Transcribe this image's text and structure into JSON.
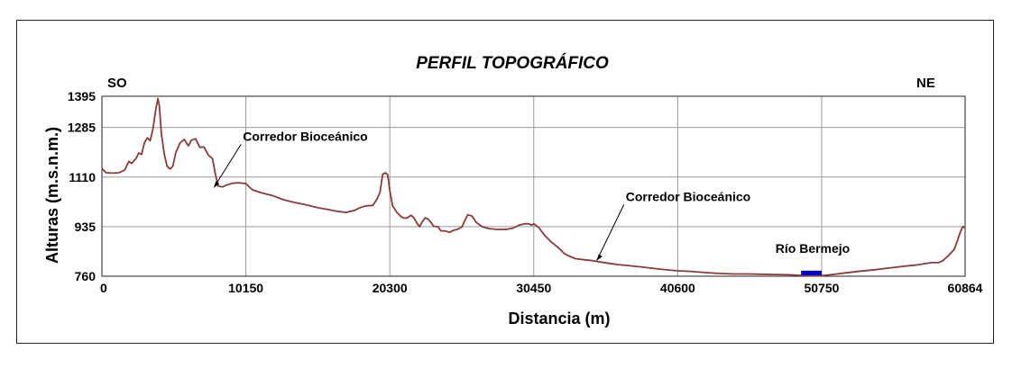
{
  "chart_data": {
    "type": "line",
    "title": "PERFIL TOPOGRÁFICO",
    "xlabel": "Distancia (m)",
    "ylabel": "Alturas (m.s.n.m.)",
    "left_label": "SO",
    "right_label": "NE",
    "xlim": [
      0,
      60864
    ],
    "ylim": [
      760,
      1395
    ],
    "x_ticks": [
      "0",
      "10150",
      "20300",
      "30450",
      "40600",
      "50750",
      "60864"
    ],
    "x_tick_values": [
      0,
      10150,
      20300,
      30450,
      40600,
      50750,
      60864
    ],
    "y_ticks": [
      "760",
      "935",
      "1110",
      "1285",
      "1395"
    ],
    "y_tick_values": [
      760,
      935,
      1110,
      1285,
      1395
    ],
    "grid": true,
    "colors": {
      "profile": "#8b3a3a",
      "river": "#0000cc"
    },
    "series": [
      {
        "points": [
          [
            0,
            1140
          ],
          [
            300,
            1125
          ],
          [
            800,
            1124
          ],
          [
            1200,
            1125
          ],
          [
            1600,
            1135
          ],
          [
            1900,
            1165
          ],
          [
            2100,
            1158
          ],
          [
            2400,
            1175
          ],
          [
            2600,
            1195
          ],
          [
            2800,
            1190
          ],
          [
            3000,
            1232
          ],
          [
            3200,
            1248
          ],
          [
            3400,
            1238
          ],
          [
            3600,
            1280
          ],
          [
            3800,
            1348
          ],
          [
            3950,
            1387
          ],
          [
            4050,
            1360
          ],
          [
            4200,
            1260
          ],
          [
            4400,
            1190
          ],
          [
            4600,
            1148
          ],
          [
            4800,
            1138
          ],
          [
            5000,
            1148
          ],
          [
            5200,
            1195
          ],
          [
            5500,
            1230
          ],
          [
            5800,
            1243
          ],
          [
            6100,
            1220
          ],
          [
            6300,
            1240
          ],
          [
            6600,
            1245
          ],
          [
            6900,
            1215
          ],
          [
            7200,
            1216
          ],
          [
            7500,
            1188
          ],
          [
            7800,
            1175
          ],
          [
            8000,
            1120
          ],
          [
            8200,
            1078
          ],
          [
            8500,
            1075
          ],
          [
            8800,
            1082
          ],
          [
            9200,
            1088
          ],
          [
            9600,
            1090
          ],
          [
            10150,
            1087
          ],
          [
            10600,
            1065
          ],
          [
            11200,
            1055
          ],
          [
            12000,
            1045
          ],
          [
            12800,
            1030
          ],
          [
            13600,
            1020
          ],
          [
            14400,
            1012
          ],
          [
            15200,
            1002
          ],
          [
            16000,
            995
          ],
          [
            16500,
            990
          ],
          [
            17200,
            985
          ],
          [
            17800,
            992
          ],
          [
            18200,
            1002
          ],
          [
            18600,
            1008
          ],
          [
            19100,
            1010
          ],
          [
            19400,
            1032
          ],
          [
            19600,
            1055
          ],
          [
            19800,
            1120
          ],
          [
            20000,
            1125
          ],
          [
            20150,
            1118
          ],
          [
            20300,
            1062
          ],
          [
            20500,
            1008
          ],
          [
            20800,
            985
          ],
          [
            21100,
            970
          ],
          [
            21300,
            965
          ],
          [
            21500,
            965
          ],
          [
            21800,
            975
          ],
          [
            22000,
            966
          ],
          [
            22200,
            948
          ],
          [
            22400,
            935
          ],
          [
            22600,
            953
          ],
          [
            22800,
            966
          ],
          [
            23000,
            962
          ],
          [
            23200,
            950
          ],
          [
            23400,
            936
          ],
          [
            23700,
            935
          ],
          [
            23900,
            920
          ],
          [
            24200,
            920
          ],
          [
            24500,
            915
          ],
          [
            24800,
            922
          ],
          [
            25100,
            926
          ],
          [
            25400,
            935
          ],
          [
            25600,
            958
          ],
          [
            25800,
            977
          ],
          [
            26100,
            972
          ],
          [
            26400,
            950
          ],
          [
            26800,
            935
          ],
          [
            27300,
            928
          ],
          [
            27900,
            925
          ],
          [
            28500,
            925
          ],
          [
            29000,
            930
          ],
          [
            29400,
            940
          ],
          [
            29800,
            945
          ],
          [
            30100,
            945
          ],
          [
            30300,
            940
          ],
          [
            30450,
            945
          ],
          [
            30800,
            932
          ],
          [
            31200,
            905
          ],
          [
            31700,
            880
          ],
          [
            32200,
            860
          ],
          [
            32600,
            840
          ],
          [
            33000,
            830
          ],
          [
            33400,
            822
          ],
          [
            34000,
            818
          ],
          [
            34600,
            815
          ],
          [
            35200,
            810
          ],
          [
            35800,
            805
          ],
          [
            36400,
            801
          ],
          [
            37000,
            798
          ],
          [
            38000,
            793
          ],
          [
            39000,
            787
          ],
          [
            40000,
            782
          ],
          [
            40600,
            779
          ],
          [
            41500,
            777
          ],
          [
            42500,
            773
          ],
          [
            43500,
            770
          ],
          [
            44500,
            768
          ],
          [
            45500,
            768
          ],
          [
            46500,
            767
          ],
          [
            47500,
            766
          ],
          [
            48500,
            765
          ],
          [
            49300,
            763
          ],
          [
            49800,
            762
          ],
          [
            50300,
            762
          ],
          [
            50750,
            762
          ],
          [
            51500,
            766
          ],
          [
            52500,
            772
          ],
          [
            53500,
            778
          ],
          [
            54500,
            783
          ],
          [
            55500,
            789
          ],
          [
            56500,
            795
          ],
          [
            57500,
            800
          ],
          [
            58500,
            808
          ],
          [
            59000,
            808
          ],
          [
            59300,
            815
          ],
          [
            59700,
            833
          ],
          [
            60100,
            855
          ],
          [
            60300,
            882
          ],
          [
            60500,
            912
          ],
          [
            60700,
            935
          ],
          [
            60864,
            932
          ]
        ]
      }
    ],
    "river": {
      "label": "Río Bermejo",
      "x_start": 49300,
      "x_end": 50750,
      "y": 765
    },
    "annotations": [
      {
        "label": "Corredor Bioceánico",
        "x": 7900,
        "y": 1073
      },
      {
        "label": "Corredor Bioceánico",
        "x": 34900,
        "y": 816
      }
    ]
  }
}
